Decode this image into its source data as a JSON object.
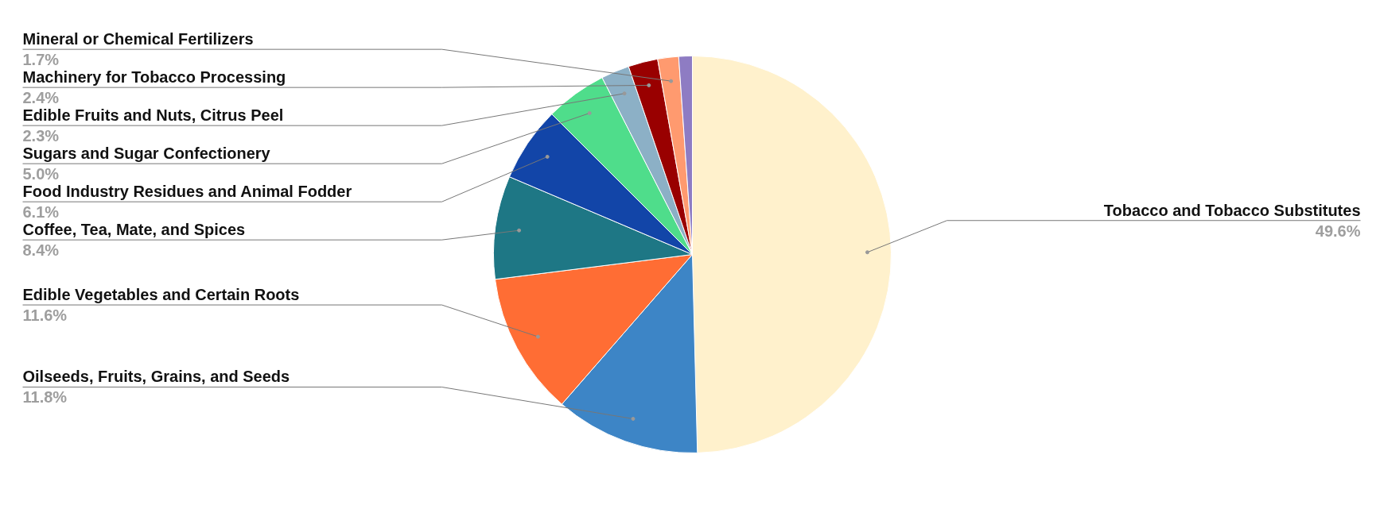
{
  "chart_data": {
    "type": "pie",
    "categories": [
      "Tobacco and Tobacco Substitutes",
      "Oilseeds, Fruits, Grains, and Seeds",
      "Edible Vegetables and Certain Roots",
      "Coffee, Tea, Mate, and Spices",
      "Food Industry Residues and Animal Fodder",
      "Sugars and Sugar Confectionery",
      "Edible Fruits and Nuts, Citrus Peel",
      "Machinery for Tobacco Processing",
      "Mineral or Chemical Fertilizers",
      null
    ],
    "values": [
      49.6,
      11.8,
      11.6,
      8.4,
      6.1,
      5.0,
      2.3,
      2.4,
      1.7,
      1.1
    ],
    "colors": [
      "#fff1cc",
      "#3d85c6",
      "#ff6d34",
      "#1e7785",
      "#1245a8",
      "#4fdd8b",
      "#8cb0c6",
      "#990000",
      "#ff9a6f",
      "#8e7cc3"
    ],
    "value_labels": [
      "49.6%",
      "11.8%",
      "11.6%",
      "8.4%",
      "6.1%",
      "5.0%",
      "2.3%",
      "2.4%",
      "1.7%",
      null
    ]
  }
}
